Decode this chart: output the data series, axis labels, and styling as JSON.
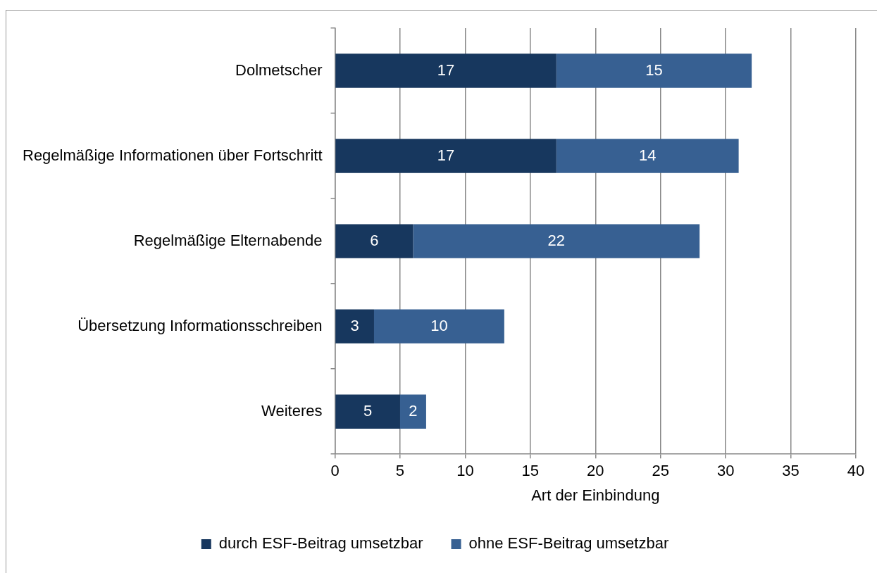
{
  "chart_data": {
    "type": "bar",
    "orientation": "horizontal",
    "stacked": true,
    "xlabel": "Art der Einbindung",
    "categories": [
      "Dolmetscher",
      "Regelmäßige Informationen über Fortschritt",
      "Regelmäßige Elternabende",
      "Übersetzung Informationsschreiben",
      "Weiteres"
    ],
    "series": [
      {
        "name": "durch ESF-Beitrag umsetzbar",
        "color": "#17375e",
        "values": [
          17,
          17,
          6,
          3,
          5
        ]
      },
      {
        "name": "ohne ESF-Beitrag umsetzbar",
        "color": "#376092",
        "values": [
          15,
          14,
          22,
          10,
          2
        ]
      }
    ],
    "xlim": [
      0,
      40
    ],
    "xticks": [
      0,
      5,
      10,
      15,
      20,
      25,
      30,
      35,
      40
    ],
    "grid": "x",
    "legend": "bottom",
    "data_labels": true
  }
}
